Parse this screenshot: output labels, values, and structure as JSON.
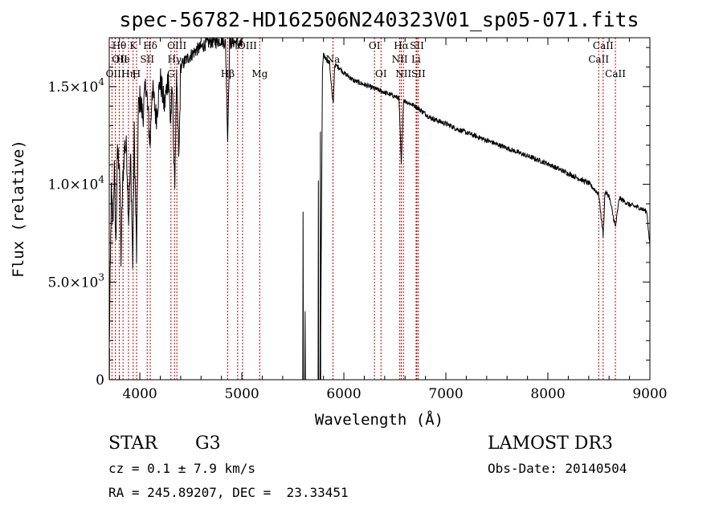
{
  "chart_data": {
    "type": "line",
    "title": "spec-56782-HD162506N240323V01_sp05-071.fits",
    "xlabel": "Wavelength (Å)",
    "ylabel": "Flux (relative)",
    "xlim": [
      3700,
      9000
    ],
    "ylim": [
      0,
      17500
    ],
    "x_ticks": [
      {
        "value": 4000,
        "label": "4000"
      },
      {
        "value": 5000,
        "label": "5000"
      },
      {
        "value": 6000,
        "label": "6000"
      },
      {
        "value": 7000,
        "label": "7000"
      },
      {
        "value": 8000,
        "label": "8000"
      },
      {
        "value": 9000,
        "label": "9000"
      }
    ],
    "y_ticks": [
      {
        "value": 0,
        "label": "0",
        "mantissa": "",
        "exponent": ""
      },
      {
        "value": 5000,
        "label": "",
        "mantissa": "5.0×10",
        "exponent": "3"
      },
      {
        "value": 10000,
        "label": "",
        "mantissa": "1.0×10",
        "exponent": "4"
      },
      {
        "value": 15000,
        "label": "",
        "mantissa": "1.5×10",
        "exponent": "4"
      }
    ],
    "spectrum_nodes": [
      [
        3700,
        1500
      ],
      [
        3720,
        9500
      ],
      [
        3735,
        8000
      ],
      [
        3750,
        10800
      ],
      [
        3765,
        6800
      ],
      [
        3780,
        11500
      ],
      [
        3800,
        11200
      ],
      [
        3815,
        6200
      ],
      [
        3830,
        9800
      ],
      [
        3850,
        12000
      ],
      [
        3870,
        11800
      ],
      [
        3890,
        8200
      ],
      [
        3910,
        11400
      ],
      [
        3930,
        6000
      ],
      [
        3945,
        12600
      ],
      [
        3968,
        6300
      ],
      [
        3985,
        13800
      ],
      [
        4000,
        14400
      ],
      [
        4030,
        13500
      ],
      [
        4060,
        15200
      ],
      [
        4101,
        12000
      ],
      [
        4120,
        15000
      ],
      [
        4160,
        13400
      ],
      [
        4200,
        15400
      ],
      [
        4240,
        14000
      ],
      [
        4280,
        15600
      ],
      [
        4300,
        13200
      ],
      [
        4320,
        14800
      ],
      [
        4340,
        9700
      ],
      [
        4360,
        15200
      ],
      [
        4383,
        11200
      ],
      [
        4400,
        16000
      ],
      [
        4440,
        16300
      ],
      [
        4480,
        16500
      ],
      [
        4520,
        16700
      ],
      [
        4560,
        16900
      ],
      [
        4600,
        17000
      ],
      [
        4650,
        17200
      ],
      [
        4700,
        17300
      ],
      [
        4750,
        17300
      ],
      [
        4800,
        17400
      ],
      [
        4840,
        17200
      ],
      [
        4861,
        12300
      ],
      [
        4880,
        17200
      ],
      [
        4920,
        17300
      ],
      [
        4960,
        17200
      ],
      [
        5000,
        17100
      ]
    ],
    "gap_range": [
      5000,
      5580
    ],
    "gap_features": [
      {
        "x": 5600,
        "y": 8600
      },
      {
        "x": 5620,
        "y": 3500
      },
      {
        "x": 5750,
        "y": 10200
      },
      {
        "x": 5770,
        "y": 12700
      }
    ],
    "red_nodes": [
      [
        5790,
        15800
      ],
      [
        5800,
        16600
      ],
      [
        5830,
        16400
      ],
      [
        5860,
        16200
      ],
      [
        5889,
        14300
      ],
      [
        5896,
        14100
      ],
      [
        5910,
        16100
      ],
      [
        5950,
        16000
      ],
      [
        6000,
        15700
      ],
      [
        6050,
        15500
      ],
      [
        6100,
        15300
      ],
      [
        6150,
        15200
      ],
      [
        6200,
        15100
      ],
      [
        6250,
        15000
      ],
      [
        6300,
        14900
      ],
      [
        6350,
        14800
      ],
      [
        6400,
        14700
      ],
      [
        6450,
        14600
      ],
      [
        6500,
        14500
      ],
      [
        6540,
        14400
      ],
      [
        6563,
        11000
      ],
      [
        6585,
        14300
      ],
      [
        6620,
        14200
      ],
      [
        6660,
        14100
      ],
      [
        6700,
        14000
      ],
      [
        6750,
        13800
      ],
      [
        6800,
        13600
      ],
      [
        6850,
        13400
      ],
      [
        6900,
        13300
      ],
      [
        6950,
        13200
      ],
      [
        7000,
        13100
      ],
      [
        7100,
        12850
      ],
      [
        7200,
        12650
      ],
      [
        7300,
        12450
      ],
      [
        7400,
        12250
      ],
      [
        7500,
        12050
      ],
      [
        7600,
        11850
      ],
      [
        7700,
        11650
      ],
      [
        7800,
        11450
      ],
      [
        7900,
        11250
      ],
      [
        8000,
        11050
      ],
      [
        8100,
        10800
      ],
      [
        8200,
        10550
      ],
      [
        8300,
        10300
      ],
      [
        8400,
        10050
      ],
      [
        8498,
        9500
      ],
      [
        8542,
        7400
      ],
      [
        8560,
        9600
      ],
      [
        8600,
        9400
      ],
      [
        8662,
        7800
      ],
      [
        8700,
        9300
      ],
      [
        8800,
        8950
      ],
      [
        8900,
        8800
      ],
      [
        8970,
        8600
      ],
      [
        9000,
        6800
      ]
    ],
    "spectral_lines": [
      {
        "label": "Hθ",
        "x": 3798,
        "row": 1,
        "align": "middle"
      },
      {
        "label": "OII",
        "x": 3727,
        "row": 2,
        "align": "start"
      },
      {
        "label": "He",
        "x": 3835,
        "row": 2,
        "align": "middle"
      },
      {
        "label": "K",
        "x": 3934,
        "row": 1,
        "align": "middle"
      },
      {
        "label": "Hδ",
        "x": 4102,
        "row": 1,
        "align": "middle"
      },
      {
        "label": "SII",
        "x": 4072,
        "row": 2,
        "align": "middle"
      },
      {
        "label": "OIII",
        "x": 4363,
        "row": 1,
        "align": "middle"
      },
      {
        "label": "Hγ",
        "x": 4340,
        "row": 2,
        "align": "middle"
      },
      {
        "label": "OIII",
        "x": 4959,
        "row": 1,
        "align": "start"
      },
      {
        "label": "OIII",
        "x": 3760,
        "row": 3,
        "align": "middle"
      },
      {
        "label": "Hη",
        "x": 3889,
        "row": 3,
        "align": "middle"
      },
      {
        "label": "H",
        "x": 3968,
        "row": 3,
        "align": "middle"
      },
      {
        "label": "G",
        "x": 4305,
        "row": 3,
        "align": "middle"
      },
      {
        "label": "Hβ",
        "x": 4861,
        "row": 3,
        "align": "middle"
      },
      {
        "label": "Mg",
        "x": 5175,
        "row": 3,
        "align": "middle"
      },
      {
        "label": "Na",
        "x": 5893,
        "row": 2,
        "align": "middle"
      },
      {
        "label": "OI",
        "x": 6300,
        "row": 1,
        "align": "middle"
      },
      {
        "label": "OI",
        "x": 6364,
        "row": 3,
        "align": "middle"
      },
      {
        "label": "Hα",
        "x": 6563,
        "row": 1,
        "align": "middle"
      },
      {
        "label": "SII",
        "x": 6716,
        "row": 1,
        "align": "middle"
      },
      {
        "label": "NII",
        "x": 6548,
        "row": 2,
        "align": "middle"
      },
      {
        "label": "Li",
        "x": 6708,
        "row": 2,
        "align": "middle"
      },
      {
        "label": "NII",
        "x": 6584,
        "row": 3,
        "align": "middle"
      },
      {
        "label": "SII",
        "x": 6731,
        "row": 3,
        "align": "middle"
      },
      {
        "label": "CaII",
        "x": 8542,
        "row": 1,
        "align": "middle"
      },
      {
        "label": "CaII",
        "x": 8498,
        "row": 2,
        "align": "middle"
      },
      {
        "label": "CaII",
        "x": 8662,
        "row": 3,
        "align": "middle"
      }
    ],
    "extra_marker_lines": [
      3798,
      3835,
      3889,
      4102,
      4340,
      4959,
      5007
    ]
  },
  "info": {
    "class_label": "STAR",
    "subclass": "G3",
    "cz": "cz = 0.1 ± 7.9 km/s",
    "radec": "RA = 245.89207, DEC =  23.33451",
    "survey": "LAMOST DR3",
    "obs_date": "Obs-Date: 20140504"
  },
  "colors": {
    "spectrum": "#000000",
    "line_marker": "#c00000",
    "background": "#ffffff"
  }
}
